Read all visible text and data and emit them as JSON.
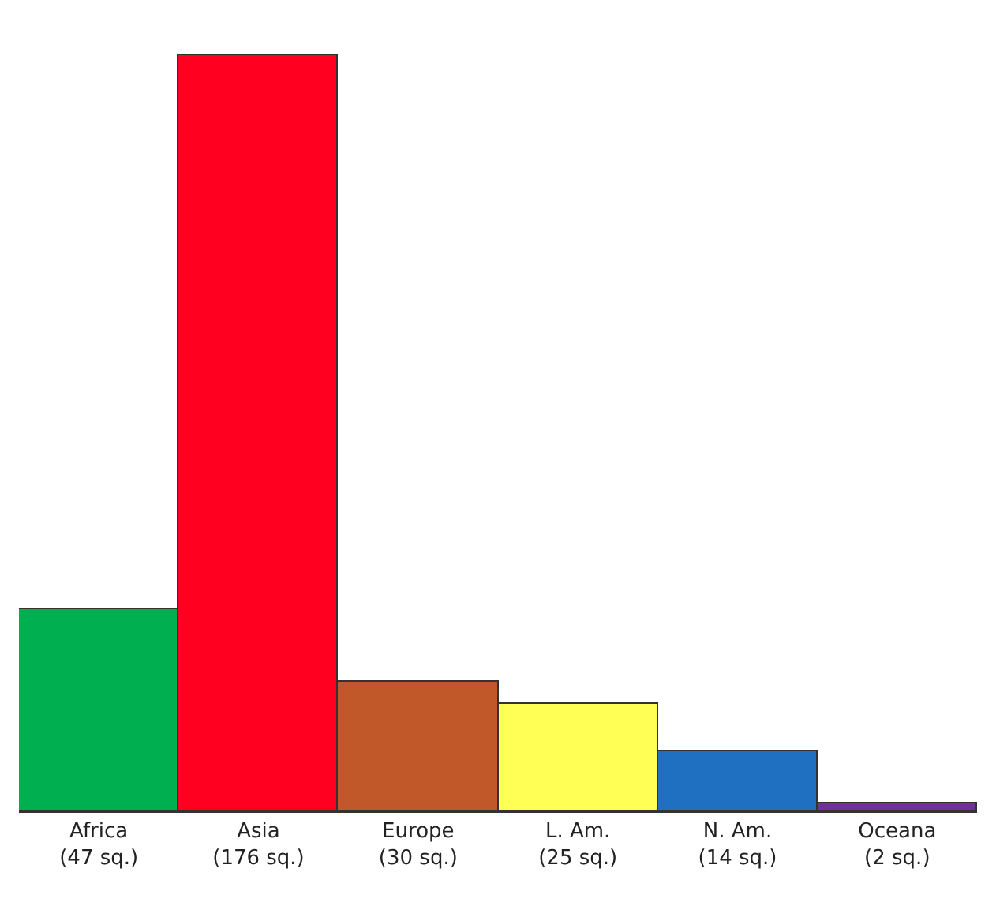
{
  "chart_data": {
    "type": "bar",
    "categories": [
      "Africa",
      "Asia",
      "Europe",
      "L. Am.",
      "N. Am.",
      "Oceana"
    ],
    "values": [
      47,
      176,
      30,
      25,
      14,
      2
    ],
    "value_labels": [
      "(47 sq.)",
      "(176 sq.)",
      "(30 sq.)",
      "(25 sq.)",
      "(14 sq.)",
      "(2 sq.)"
    ],
    "colors": [
      "#00b050",
      "#ff0020",
      "#c0582a",
      "#ffff55",
      "#1f70c0",
      "#7030a0"
    ],
    "legend": false
  }
}
